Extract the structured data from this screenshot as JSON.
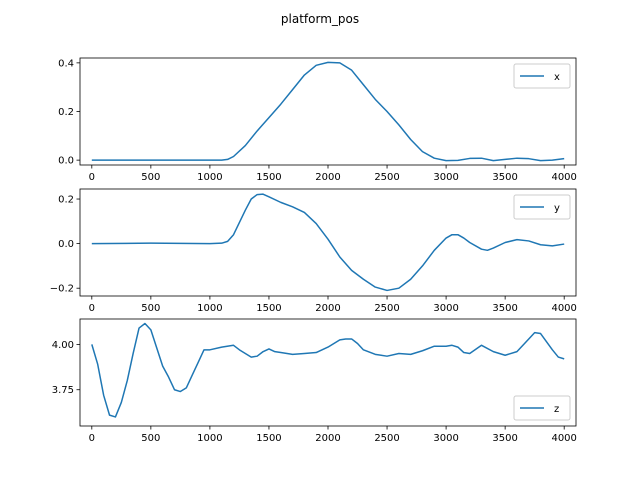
{
  "figure": {
    "title": "platform_pos",
    "line_color": "#1f77b4"
  },
  "chart_data": [
    {
      "type": "line",
      "xlim": [
        -100,
        4100
      ],
      "ylim": [
        -0.02,
        0.42
      ],
      "x_ticks": [
        0,
        500,
        1000,
        1500,
        2000,
        2500,
        3000,
        3500,
        4000
      ],
      "y_ticks": [
        0.0,
        0.2,
        0.4
      ],
      "y_tick_labels": [
        "0.0",
        "0.2",
        "0.4"
      ],
      "legend": "upper right",
      "series": [
        {
          "name": "x",
          "x": [
            0,
            500,
            1000,
            1100,
            1150,
            1200,
            1300,
            1400,
            1500,
            1600,
            1700,
            1800,
            1900,
            2000,
            2100,
            2200,
            2300,
            2400,
            2500,
            2600,
            2700,
            2800,
            2900,
            3000,
            3100,
            3200,
            3300,
            3400,
            3500,
            3600,
            3700,
            3800,
            3900,
            4000
          ],
          "y": [
            0.0,
            0.0,
            0.0,
            0.0,
            0.003,
            0.015,
            0.06,
            0.12,
            0.175,
            0.23,
            0.29,
            0.35,
            0.39,
            0.402,
            0.4,
            0.37,
            0.31,
            0.25,
            0.2,
            0.145,
            0.085,
            0.035,
            0.008,
            -0.002,
            -0.001,
            0.007,
            0.008,
            -0.002,
            0.003,
            0.008,
            0.006,
            -0.002,
            0.0,
            0.006
          ]
        }
      ]
    },
    {
      "type": "line",
      "xlim": [
        -100,
        4100
      ],
      "ylim": [
        -0.235,
        0.245
      ],
      "x_ticks": [
        0,
        500,
        1000,
        1500,
        2000,
        2500,
        3000,
        3500,
        4000
      ],
      "y_ticks": [
        -0.2,
        0.0,
        0.2
      ],
      "y_tick_labels": [
        "−0.2",
        "0.0",
        "0.2"
      ],
      "legend": "upper right",
      "series": [
        {
          "name": "y",
          "x": [
            0,
            500,
            1000,
            1100,
            1150,
            1200,
            1250,
            1300,
            1350,
            1400,
            1450,
            1500,
            1600,
            1700,
            1800,
            1900,
            2000,
            2100,
            2200,
            2300,
            2400,
            2500,
            2600,
            2700,
            2800,
            2900,
            3000,
            3050,
            3100,
            3150,
            3200,
            3300,
            3350,
            3400,
            3500,
            3600,
            3700,
            3800,
            3900,
            4000
          ],
          "y": [
            0.0,
            0.002,
            0.0,
            0.002,
            0.01,
            0.04,
            0.095,
            0.15,
            0.2,
            0.22,
            0.222,
            0.21,
            0.185,
            0.165,
            0.14,
            0.09,
            0.02,
            -0.06,
            -0.12,
            -0.16,
            -0.195,
            -0.21,
            -0.2,
            -0.16,
            -0.1,
            -0.03,
            0.025,
            0.04,
            0.04,
            0.025,
            0.005,
            -0.025,
            -0.03,
            -0.02,
            0.005,
            0.018,
            0.012,
            -0.005,
            -0.01,
            -0.002
          ]
        }
      ]
    },
    {
      "type": "line",
      "xlim": [
        -100,
        4100
      ],
      "ylim": [
        3.55,
        4.14
      ],
      "x_ticks": [
        0,
        500,
        1000,
        1500,
        2000,
        2500,
        3000,
        3500,
        4000
      ],
      "y_ticks": [
        3.75,
        4.0
      ],
      "y_tick_labels": [
        "3.75",
        "4.00"
      ],
      "legend": "lower right",
      "series": [
        {
          "name": "z",
          "x": [
            0,
            50,
            100,
            150,
            200,
            250,
            300,
            350,
            400,
            450,
            500,
            550,
            600,
            650,
            700,
            750,
            800,
            850,
            900,
            950,
            1000,
            1100,
            1200,
            1250,
            1300,
            1350,
            1400,
            1450,
            1500,
            1550,
            1600,
            1700,
            1800,
            1900,
            2000,
            2100,
            2150,
            2200,
            2250,
            2300,
            2400,
            2500,
            2600,
            2700,
            2800,
            2900,
            3000,
            3050,
            3100,
            3150,
            3200,
            3300,
            3400,
            3500,
            3600,
            3700,
            3750,
            3800,
            3900,
            3950,
            4000
          ],
          "y": [
            4.0,
            3.89,
            3.72,
            3.61,
            3.6,
            3.68,
            3.8,
            3.95,
            4.09,
            4.115,
            4.08,
            3.98,
            3.88,
            3.82,
            3.75,
            3.74,
            3.76,
            3.83,
            3.9,
            3.97,
            3.97,
            3.985,
            3.995,
            3.97,
            3.95,
            3.93,
            3.935,
            3.96,
            3.975,
            3.96,
            3.955,
            3.945,
            3.95,
            3.955,
            3.985,
            4.025,
            4.03,
            4.03,
            4.005,
            3.97,
            3.945,
            3.935,
            3.95,
            3.945,
            3.965,
            3.99,
            3.99,
            3.995,
            3.985,
            3.955,
            3.95,
            3.995,
            3.96,
            3.94,
            3.96,
            4.03,
            4.065,
            4.06,
            3.97,
            3.93,
            3.92
          ]
        }
      ]
    }
  ]
}
